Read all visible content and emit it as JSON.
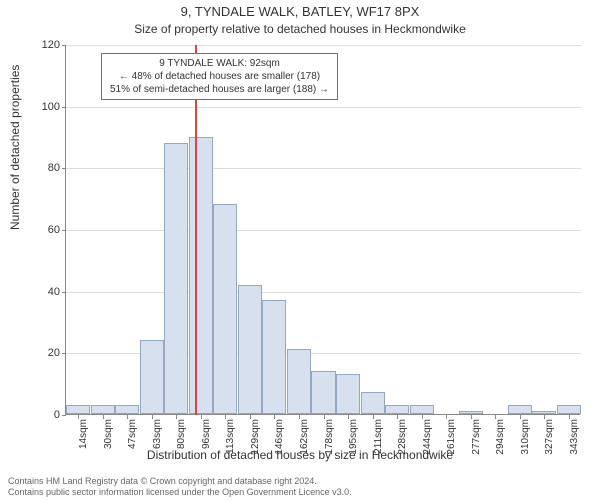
{
  "title": "9, TYNDALE WALK, BATLEY, WF17 8PX",
  "subtitle": "Size of property relative to detached houses in Heckmondwike",
  "xlabel": "Distribution of detached houses by size in Heckmondwike",
  "ylabel": "Number of detached properties",
  "chart": {
    "type": "histogram",
    "categories": [
      "14sqm",
      "30sqm",
      "47sqm",
      "63sqm",
      "80sqm",
      "96sqm",
      "113sqm",
      "129sqm",
      "146sqm",
      "162sqm",
      "178sqm",
      "195sqm",
      "211sqm",
      "228sqm",
      "244sqm",
      "261sqm",
      "277sqm",
      "294sqm",
      "310sqm",
      "327sqm",
      "343sqm"
    ],
    "values": [
      3,
      3,
      3,
      24,
      88,
      90,
      68,
      42,
      37,
      21,
      14,
      13,
      7,
      3,
      3,
      0,
      1,
      0,
      3,
      1,
      3
    ],
    "bar_color": "#d7e0ef",
    "bar_border_color": "#94a8c4",
    "grid_color": "#ddd",
    "background_color": "#ffffff",
    "ylim_max": 120,
    "ytick_step": 20,
    "yticks": [
      0,
      20,
      40,
      60,
      80,
      100,
      120
    ],
    "reference_line_index": 4.75,
    "reference_line_color": "#d44",
    "title_fontsize": 13,
    "subtitle_fontsize": 12,
    "label_fontsize": 12,
    "tick_fontsize": 10
  },
  "annotation": {
    "line1": "9 TYNDALE WALK: 92sqm",
    "line2": "← 48% of detached houses are smaller (178)",
    "line3": "51% of semi-detached houses are larger (188) →",
    "border_color": "#d44",
    "background_color": "#ffffff",
    "fontsize": 10
  },
  "footer": {
    "line1": "Contains HM Land Registry data © Crown copyright and database right 2024.",
    "line2": "Contains public sector information licensed under the Open Government Licence v3.0."
  }
}
